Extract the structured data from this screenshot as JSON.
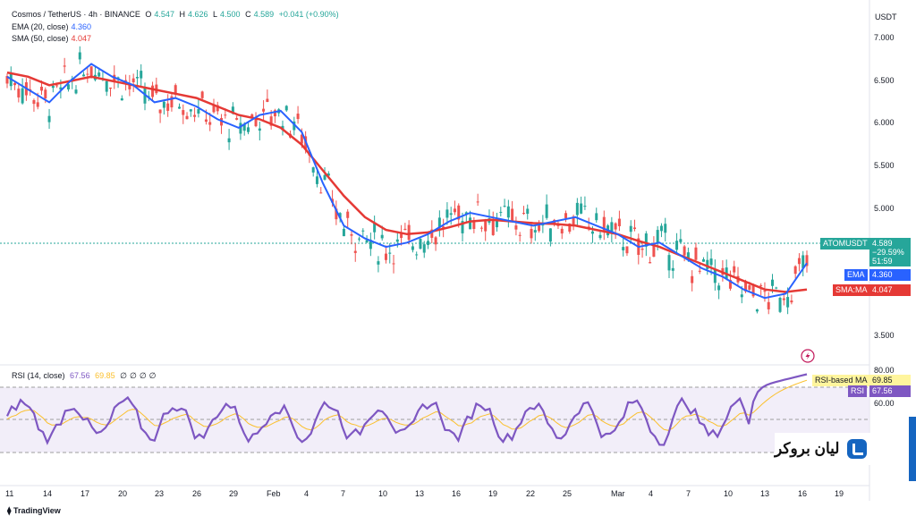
{
  "header": {
    "symbol": "Cosmos / TetherUS · 4h · BINANCE",
    "o_label": "O",
    "o_value": "4.547",
    "h_label": "H",
    "h_value": "4.626",
    "l_label": "L",
    "l_value": "4.500",
    "c_label": "C",
    "c_value": "4.589",
    "change": "+0.041 (+0.90%)",
    "ema_label": "EMA (20, close)",
    "ema_value": "4.360",
    "sma_label": "SMA (50, close)",
    "sma_value": "4.047"
  },
  "price_axis": {
    "currency": "USDT",
    "ticks": [
      "7.000",
      "6.500",
      "6.000",
      "5.500",
      "5.000",
      "3.500"
    ]
  },
  "price_tags": {
    "symbol": "ATOMUSDT",
    "price": "4.589",
    "pct": "−29.59%",
    "countdown": "51:59",
    "ema_tag": "EMA",
    "ema_value": "4.360",
    "sma_tag": "SMA:MA",
    "sma_value": "4.047"
  },
  "rsi": {
    "label": "RSI (14, close)",
    "value": "67.56",
    "ma_value": "69.85",
    "extras": [
      "∅",
      "∅",
      "∅",
      "∅"
    ],
    "axis_ticks": [
      "80.00",
      "60.00"
    ],
    "ma_tag": "RSI-based MA",
    "ma_tag_value": "69.85",
    "rsi_tag": "RSI",
    "rsi_tag_value": "67.56"
  },
  "time_axis": [
    "11",
    "14",
    "17",
    "20",
    "23",
    "26",
    "29",
    "Feb",
    "4",
    "7",
    "10",
    "13",
    "16",
    "19",
    "22",
    "25",
    "Mar",
    "4",
    "7",
    "10",
    "13",
    "16",
    "19"
  ],
  "watermark": "لیان بروکر",
  "footer": "TradingView",
  "colors": {
    "up": "#26a69a",
    "down": "#ef5350",
    "ema": "#2962ff",
    "sma": "#e53935",
    "rsi": "#7e57c2",
    "rsi_ma": "#fbc02d",
    "tag_green": "#26a69a"
  },
  "chart_data": {
    "type": "candlestick",
    "series": [
      {
        "name": "EMA (20, close)",
        "values": [
          6.55,
          6.4,
          6.25,
          6.5,
          6.7,
          6.55,
          6.45,
          6.25,
          6.3,
          6.2,
          6.05,
          5.95,
          6.1,
          6.15,
          5.9,
          5.3,
          4.8,
          4.65,
          4.55,
          4.6,
          4.7,
          4.85,
          4.95,
          4.9,
          4.85,
          4.8,
          4.85,
          4.9,
          4.8,
          4.7,
          4.55,
          4.6,
          4.45,
          4.3,
          4.2,
          4.05,
          3.95,
          4.0,
          4.36
        ]
      },
      {
        "name": "SMA (50, close)",
        "values": [
          6.6,
          6.55,
          6.45,
          6.5,
          6.55,
          6.5,
          6.45,
          6.4,
          6.35,
          6.3,
          6.2,
          6.1,
          6.05,
          5.95,
          5.75,
          5.45,
          5.15,
          4.9,
          4.75,
          4.7,
          4.72,
          4.78,
          4.85,
          4.87,
          4.85,
          4.83,
          4.82,
          4.8,
          4.75,
          4.7,
          4.62,
          4.55,
          4.45,
          4.35,
          4.25,
          4.15,
          4.05,
          4.02,
          4.05
        ]
      }
    ],
    "ylim": [
      3.4,
      7.2
    ],
    "rsi_levels": [
      70,
      50,
      30
    ]
  }
}
